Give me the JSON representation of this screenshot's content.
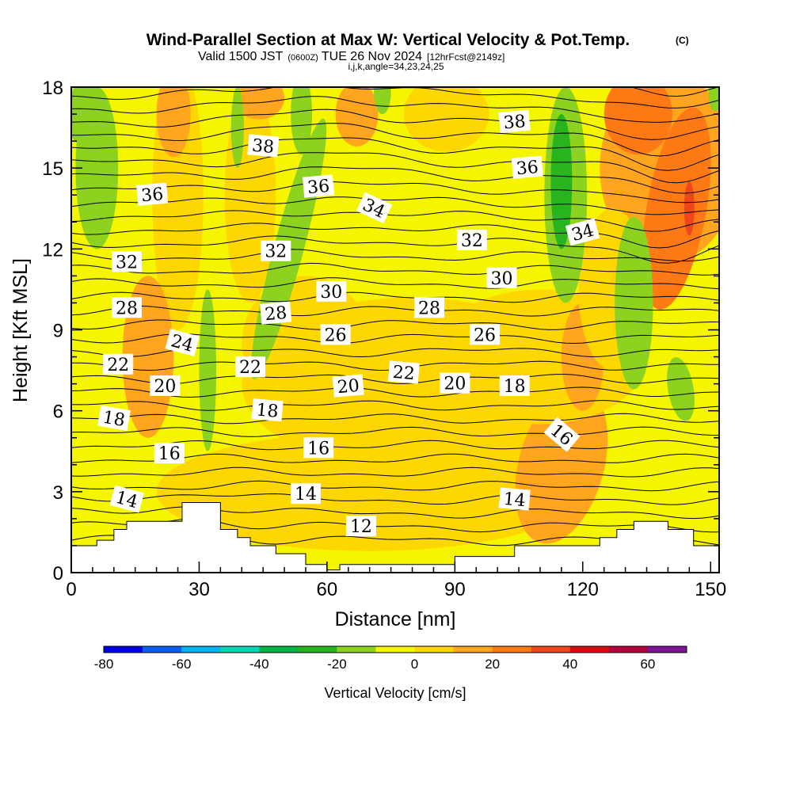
{
  "title": "Wind-Parallel Section at Max W: Vertical Velocity & Pot.Temp.",
  "title_mark": "(C)",
  "subtitle": {
    "prefix": "Valid 1500 JST",
    "utc": "(0600Z)",
    "date": "TUE 26 Nov 2024",
    "fcst": "[12hrFcst@2149z]"
  },
  "index_line": "i,j,k,angle=34,23,24,25",
  "chart_data": {
    "type": "contour",
    "xlabel": "Distance [nm]",
    "ylabel": "Height [Kft MSL]",
    "xlim": [
      0,
      152
    ],
    "ylim": [
      0,
      18
    ],
    "x_ticks": [
      "0",
      "30",
      "60",
      "90",
      "120",
      "150"
    ],
    "x_tick_values": [
      0,
      30,
      60,
      90,
      120,
      150
    ],
    "y_ticks": [
      "0",
      "3",
      "6",
      "9",
      "12",
      "15",
      "18"
    ],
    "y_tick_values": [
      0,
      3,
      6,
      9,
      12,
      15,
      18
    ],
    "terrain": [
      [
        0,
        1
      ],
      [
        6,
        1
      ],
      [
        6,
        1.2
      ],
      [
        10,
        1.2
      ],
      [
        10,
        1.6
      ],
      [
        13,
        1.6
      ],
      [
        13,
        1.9
      ],
      [
        26,
        1.9
      ],
      [
        26,
        2.6
      ],
      [
        35,
        2.6
      ],
      [
        35,
        1.6
      ],
      [
        39,
        1.6
      ],
      [
        39,
        1.3
      ],
      [
        42,
        1.3
      ],
      [
        42,
        1.0
      ],
      [
        48,
        1.0
      ],
      [
        48,
        0.7
      ],
      [
        55,
        0.7
      ],
      [
        55,
        0.3
      ],
      [
        60,
        0.3
      ],
      [
        60,
        0.1
      ],
      [
        63,
        0.1
      ],
      [
        63,
        0.3
      ],
      [
        90,
        0.3
      ],
      [
        90,
        0.6
      ],
      [
        104,
        0.6
      ],
      [
        104,
        1.0
      ],
      [
        124,
        1.0
      ],
      [
        124,
        1.3
      ],
      [
        128,
        1.3
      ],
      [
        128,
        1.6
      ],
      [
        132,
        1.6
      ],
      [
        132,
        1.9
      ],
      [
        140,
        1.9
      ],
      [
        140,
        1.6
      ],
      [
        146,
        1.6
      ],
      [
        146,
        1.0
      ],
      [
        152,
        1.0
      ]
    ],
    "theta_contour_labels": [
      {
        "text": "38",
        "x": 45,
        "y": 15.8,
        "angle": -5
      },
      {
        "text": "38",
        "x": 104,
        "y": 16.7,
        "angle": 5
      },
      {
        "text": "36",
        "x": 19,
        "y": 14.0,
        "angle": 5
      },
      {
        "text": "36",
        "x": 58,
        "y": 14.3,
        "angle": 5
      },
      {
        "text": "36",
        "x": 107,
        "y": 15.0,
        "angle": 5
      },
      {
        "text": "34",
        "x": 71,
        "y": 13.5,
        "angle": -25
      },
      {
        "text": "34",
        "x": 120,
        "y": 12.6,
        "angle": 15
      },
      {
        "text": "32",
        "x": 13,
        "y": 11.5,
        "angle": 0
      },
      {
        "text": "32",
        "x": 48,
        "y": 11.9,
        "angle": 0
      },
      {
        "text": "32",
        "x": 94,
        "y": 12.3,
        "angle": 0
      },
      {
        "text": "30",
        "x": 61,
        "y": 10.4,
        "angle": 0
      },
      {
        "text": "30",
        "x": 101,
        "y": 10.9,
        "angle": 0
      },
      {
        "text": "28",
        "x": 13,
        "y": 9.8,
        "angle": 0
      },
      {
        "text": "28",
        "x": 48,
        "y": 9.6,
        "angle": 5
      },
      {
        "text": "28",
        "x": 84,
        "y": 9.8,
        "angle": 0
      },
      {
        "text": "26",
        "x": 62,
        "y": 8.8,
        "angle": 0
      },
      {
        "text": "26",
        "x": 97,
        "y": 8.8,
        "angle": 0
      },
      {
        "text": "24",
        "x": 26,
        "y": 8.5,
        "angle": -15
      },
      {
        "text": "22",
        "x": 11,
        "y": 7.7,
        "angle": 0
      },
      {
        "text": "22",
        "x": 42,
        "y": 7.6,
        "angle": 0
      },
      {
        "text": "22",
        "x": 78,
        "y": 7.4,
        "angle": -5
      },
      {
        "text": "20",
        "x": 22,
        "y": 6.9,
        "angle": 0
      },
      {
        "text": "20",
        "x": 65,
        "y": 6.9,
        "angle": 5
      },
      {
        "text": "20",
        "x": 90,
        "y": 7.0,
        "angle": 0
      },
      {
        "text": "18",
        "x": 10,
        "y": 5.7,
        "angle": -10
      },
      {
        "text": "18",
        "x": 46,
        "y": 6.0,
        "angle": -5
      },
      {
        "text": "18",
        "x": 104,
        "y": 6.9,
        "angle": 0
      },
      {
        "text": "16",
        "x": 23,
        "y": 4.4,
        "angle": 0
      },
      {
        "text": "16",
        "x": 58,
        "y": 4.6,
        "angle": 0
      },
      {
        "text": "16",
        "x": 115,
        "y": 5.1,
        "angle": -40
      },
      {
        "text": "14",
        "x": 13,
        "y": 2.7,
        "angle": -15
      },
      {
        "text": "14",
        "x": 55,
        "y": 2.9,
        "angle": 0
      },
      {
        "text": "14",
        "x": 104,
        "y": 2.7,
        "angle": -5
      },
      {
        "text": "12",
        "x": 68,
        "y": 1.7,
        "angle": 0
      }
    ],
    "colorbar": {
      "label": "Vertical Velocity [cm/s]",
      "ticks": [
        "-80",
        "-60",
        "-40",
        "-20",
        "0",
        "20",
        "40",
        "60"
      ],
      "bounds": [
        -80,
        70
      ],
      "step": 10,
      "colors": [
        "#0000e6",
        "#0a5ff0",
        "#00b4f5",
        "#00d7b4",
        "#00b446",
        "#28b41e",
        "#8cd21e",
        "#f5f500",
        "#ffd700",
        "#ffa51e",
        "#ff7a14",
        "#f0461e",
        "#dc0a14",
        "#b4003c",
        "#7d1496"
      ]
    }
  }
}
